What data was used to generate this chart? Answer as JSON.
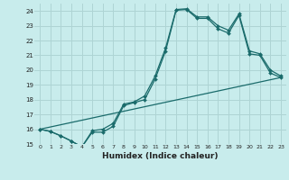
{
  "title": "",
  "xlabel": "Humidex (Indice chaleur)",
  "bg_color": "#c8ecec",
  "grid_color": "#aed4d4",
  "line_color": "#1a6b6b",
  "xlim": [
    -0.5,
    23.5
  ],
  "ylim": [
    15,
    24.5
  ],
  "xticks": [
    0,
    1,
    2,
    3,
    4,
    5,
    6,
    7,
    8,
    9,
    10,
    11,
    12,
    13,
    14,
    15,
    16,
    17,
    18,
    19,
    20,
    21,
    22,
    23
  ],
  "yticks": [
    15,
    16,
    17,
    18,
    19,
    20,
    21,
    22,
    23,
    24
  ],
  "line1_x": [
    0,
    1,
    2,
    3,
    4,
    5,
    6,
    7,
    8,
    9,
    10,
    11,
    12,
    13,
    14,
    15,
    16,
    17,
    18,
    19,
    20,
    21,
    22,
    23
  ],
  "line1_y": [
    16.0,
    15.85,
    15.55,
    15.2,
    14.8,
    15.8,
    15.8,
    16.2,
    17.6,
    17.8,
    18.0,
    19.4,
    21.3,
    24.05,
    24.1,
    23.5,
    23.5,
    22.8,
    22.5,
    23.7,
    21.1,
    21.0,
    19.8,
    19.5
  ],
  "line2_x": [
    0,
    1,
    2,
    3,
    4,
    5,
    6,
    7,
    8,
    9,
    10,
    11,
    12,
    13,
    14,
    15,
    16,
    17,
    18,
    19,
    20,
    21,
    22,
    23
  ],
  "line2_y": [
    16.0,
    15.85,
    15.55,
    15.2,
    14.8,
    15.9,
    16.0,
    16.4,
    17.7,
    17.85,
    18.25,
    19.6,
    21.5,
    24.1,
    24.15,
    23.6,
    23.6,
    23.0,
    22.7,
    23.8,
    21.3,
    21.1,
    20.0,
    19.6
  ],
  "line3_x": [
    0,
    23
  ],
  "line3_y": [
    16.0,
    19.5
  ],
  "xticklabels": [
    "0",
    "1",
    "2",
    "3",
    "4",
    "5",
    "6",
    "7",
    "8",
    "9",
    "10",
    "11",
    "12",
    "13",
    "14",
    "15",
    "16",
    "17",
    "18",
    "19",
    "20",
    "21",
    "22",
    "23"
  ]
}
